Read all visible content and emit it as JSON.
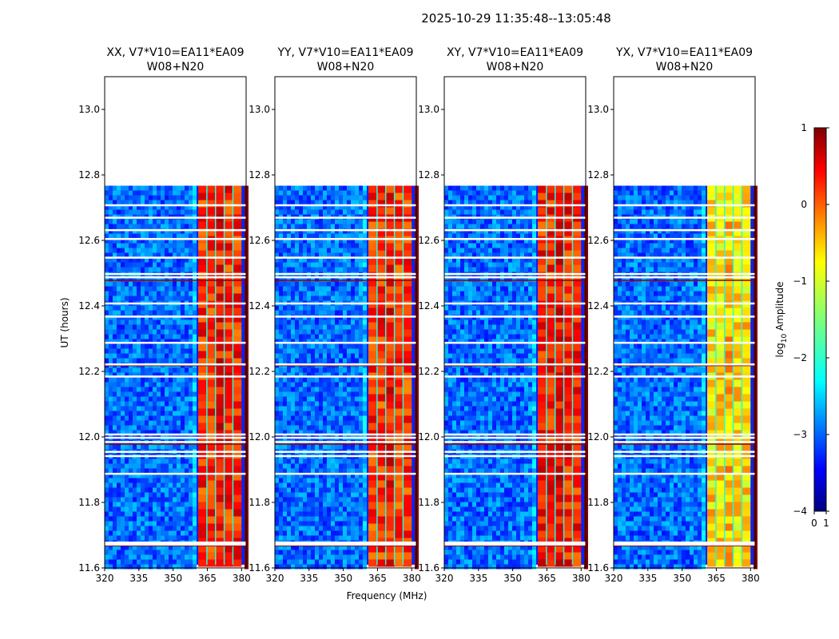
{
  "suptitle": "2025-10-29  11:35:48--13:05:48",
  "chart_data": {
    "type": "heatmap",
    "ylabel": "UT (hours)",
    "xlabel": "Frequency (MHz)",
    "xlim": [
      320,
      382
    ],
    "ylim": [
      11.6,
      13.1
    ],
    "data_y_range": [
      11.6,
      12.767
    ],
    "xticks": [
      320,
      335,
      350,
      365,
      380
    ],
    "xtick_labels": [
      "320",
      "335",
      "350",
      "365",
      "380"
    ],
    "yticks": [
      11.6,
      11.8,
      12.0,
      12.2,
      12.4,
      12.6,
      12.8,
      13.0
    ],
    "ytick_labels": [
      "11.6",
      "11.8",
      "12.0",
      "12.2",
      "12.4",
      "12.6",
      "12.8",
      "13.0"
    ],
    "panels": [
      {
        "title_line1": "XX, V7*V10=EA11*EA09",
        "title_line2": "W08+N20",
        "band_start_mhz": 361,
        "band_end_mhz": 380,
        "band_level": 0.2
      },
      {
        "title_line1": "YY, V7*V10=EA11*EA09",
        "title_line2": "W08+N20",
        "band_start_mhz": 361,
        "band_end_mhz": 380,
        "band_level": 0.15
      },
      {
        "title_line1": "XY, V7*V10=EA11*EA09",
        "title_line2": "W08+N20",
        "band_start_mhz": 361,
        "band_end_mhz": 380,
        "band_level": 0.25
      },
      {
        "title_line1": "YX, V7*V10=EA11*EA09",
        "title_line2": "W08+N20",
        "band_start_mhz": 361,
        "band_end_mhz": 380,
        "band_level": -0.7
      }
    ],
    "gap_times_ut": [
      11.672,
      11.678,
      11.888,
      11.942,
      11.955,
      11.985,
      11.998,
      12.008,
      12.185,
      12.222,
      12.288,
      12.368,
      12.408,
      12.488,
      12.498,
      12.548,
      12.605,
      12.632,
      12.67,
      12.708
    ],
    "dark_line_times_ut": [
      11.668,
      11.978,
      12.218,
      12.222,
      12.478
    ],
    "colorbar": {
      "label": "log10 Amplitude",
      "label_main": "log",
      "label_sub": "10",
      "label_rest": " Amplitude",
      "min": -4,
      "max": 1,
      "ticks": [
        1,
        0,
        -1,
        -2,
        -3,
        -4
      ],
      "tick_labels": [
        "1",
        "0",
        "−1",
        "−2",
        "−3",
        "−4"
      ],
      "colormap": "jet",
      "xtick_labels": [
        "0",
        "1"
      ]
    }
  }
}
